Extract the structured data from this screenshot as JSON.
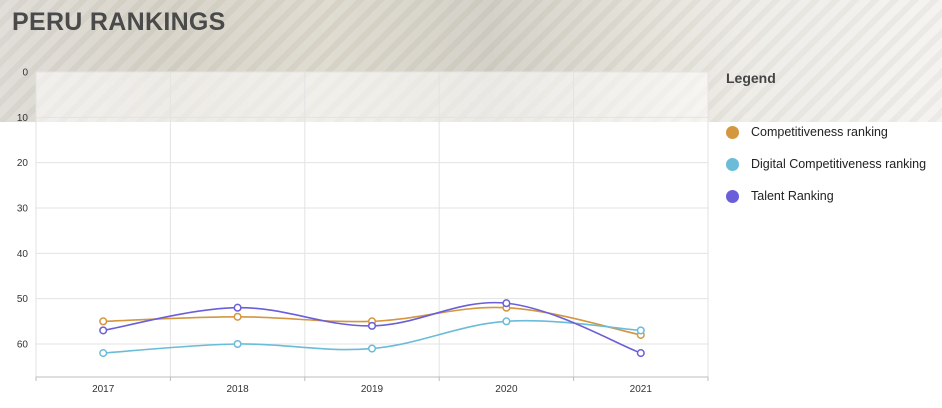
{
  "page": {
    "title": "PERU RANKINGS"
  },
  "legend": {
    "title": "Legend"
  },
  "chart_data": {
    "type": "line",
    "title": "PERU RANKINGS",
    "categories": [
      "2017",
      "2018",
      "2019",
      "2020",
      "2021"
    ],
    "ylim": [
      0,
      67
    ],
    "y_reversed": true,
    "y_ticks": [
      0,
      10,
      20,
      30,
      40,
      50,
      60
    ],
    "grid": true,
    "legend_position": "right",
    "series": [
      {
        "name": "Competitiveness ranking",
        "color": "#d4963f",
        "values": [
          55,
          54,
          55,
          52,
          58
        ]
      },
      {
        "name": "Digital Competitiveness ranking",
        "color": "#6bbcd8",
        "values": [
          62,
          60,
          61,
          55,
          57
        ]
      },
      {
        "name": "Talent Ranking",
        "color": "#6a5fd8",
        "values": [
          57,
          52,
          56,
          51,
          62
        ]
      }
    ]
  }
}
